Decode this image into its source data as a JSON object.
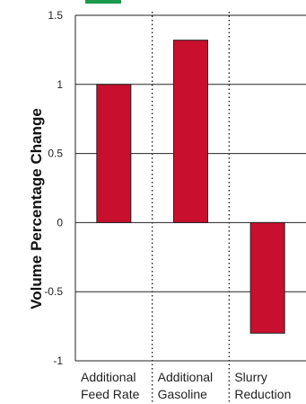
{
  "chart_data": {
    "type": "bar",
    "categories": [
      [
        "Additional",
        "Feed Rate"
      ],
      [
        "Additional",
        "Gasoline"
      ],
      [
        "Slurry",
        "Reduction"
      ]
    ],
    "values": [
      1.0,
      1.32,
      -0.8
    ],
    "ylabel": "Volume Percentage Change",
    "ylim": [
      -1,
      1.5
    ],
    "yticks": [
      "1.5",
      "1",
      "0.5",
      "0",
      "-0.5",
      "-1"
    ],
    "bar_color": "#c8102e",
    "bar_stroke": "#222222",
    "gridlines": true,
    "category_separators": "dotted"
  }
}
